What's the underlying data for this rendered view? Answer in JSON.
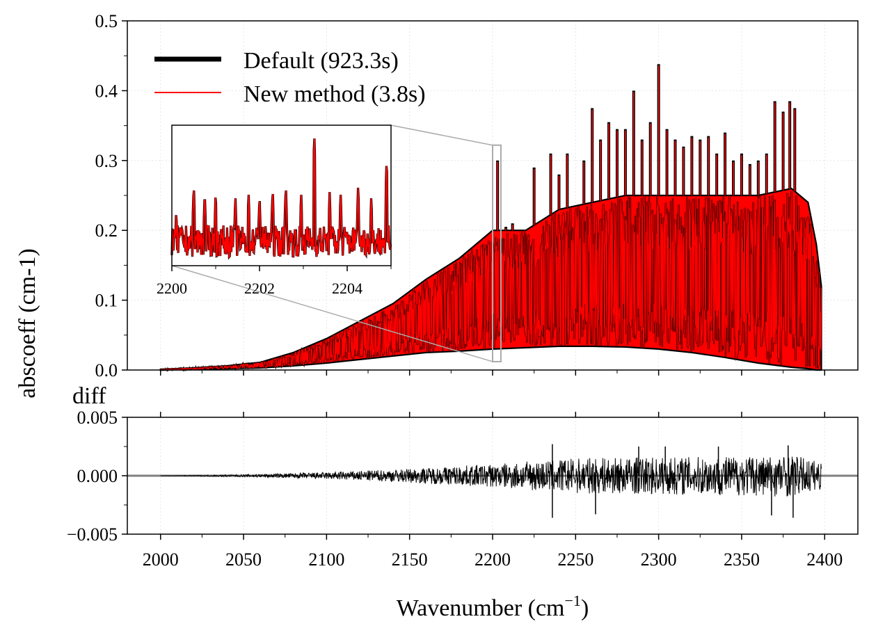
{
  "chart_data": [
    {
      "type": "line",
      "panel": "main",
      "ylabel": "abscoeff (cm-1)",
      "xlim": [
        1980,
        2420
      ],
      "ylim": [
        0.0,
        0.5
      ],
      "xticks": [
        2000,
        2050,
        2100,
        2150,
        2200,
        2250,
        2300,
        2350,
        2400
      ],
      "yticks": [
        0.0,
        0.1,
        0.2,
        0.3,
        0.4,
        0.5
      ],
      "ytick_labels": [
        "0.0",
        "0.1",
        "0.2",
        "0.3",
        "0.4",
        "0.5"
      ],
      "grid": true,
      "legend": "top-left",
      "series": [
        {
          "name": "Default (923.3s)",
          "color": "#000000",
          "style": "thick-line"
        },
        {
          "name": "New method (3.8s)",
          "color": "#ff0000",
          "style": "thin-line"
        }
      ],
      "envelope": {
        "x": [
          2000,
          2020,
          2040,
          2060,
          2080,
          2100,
          2120,
          2140,
          2160,
          2180,
          2200,
          2220,
          2240,
          2260,
          2280,
          2300,
          2320,
          2340,
          2360,
          2380,
          2390,
          2395,
          2398
        ],
        "upper": [
          0.001,
          0.003,
          0.006,
          0.011,
          0.025,
          0.045,
          0.07,
          0.095,
          0.13,
          0.16,
          0.2,
          0.2,
          0.23,
          0.24,
          0.25,
          0.25,
          0.25,
          0.25,
          0.25,
          0.26,
          0.24,
          0.18,
          0.12
        ],
        "lower": [
          0.0,
          0.001,
          0.002,
          0.003,
          0.006,
          0.01,
          0.015,
          0.02,
          0.025,
          0.027,
          0.03,
          0.032,
          0.034,
          0.034,
          0.033,
          0.03,
          0.025,
          0.018,
          0.01,
          0.004,
          0.002,
          0.0,
          0.0
        ]
      },
      "peaks": {
        "x": [
          2203,
          2208,
          2212,
          2225,
          2235,
          2240,
          2245,
          2255,
          2260,
          2265,
          2270,
          2275,
          2280,
          2285,
          2290,
          2295,
          2300,
          2305,
          2310,
          2315,
          2320,
          2325,
          2330,
          2335,
          2340,
          2345,
          2350,
          2355,
          2360,
          2365,
          2370,
          2375,
          2379,
          2382
        ],
        "y": [
          0.3,
          0.205,
          0.21,
          0.29,
          0.31,
          0.28,
          0.31,
          0.3,
          0.375,
          0.33,
          0.355,
          0.345,
          0.345,
          0.4,
          0.33,
          0.355,
          0.438,
          0.345,
          0.33,
          0.32,
          0.335,
          0.33,
          0.335,
          0.31,
          0.34,
          0.3,
          0.31,
          0.295,
          0.3,
          0.31,
          0.385,
          0.37,
          0.385,
          0.375
        ]
      },
      "zoom_box": {
        "x": [
          2200,
          2205
        ],
        "y": [
          0.012,
          0.322
        ]
      }
    },
    {
      "type": "line",
      "panel": "inset",
      "xlim": [
        2200,
        2205
      ],
      "xticks": [
        2200,
        2202,
        2204
      ],
      "series": [
        {
          "name": "Default (923.3s)",
          "color": "#000000"
        },
        {
          "name": "New method (3.8s)",
          "color": "#ff0000"
        }
      ],
      "peaks": {
        "x": [
          2200.1,
          2200.5,
          2200.75,
          2201.0,
          2201.45,
          2201.75,
          2202.0,
          2202.3,
          2202.6,
          2202.95,
          2203.25,
          2203.6,
          2203.85,
          2204.25,
          2204.55,
          2204.9
        ],
        "y": [
          0.23,
          0.265,
          0.255,
          0.255,
          0.25,
          0.255,
          0.25,
          0.26,
          0.265,
          0.255,
          0.335,
          0.255,
          0.255,
          0.265,
          0.25,
          0.3
        ]
      }
    },
    {
      "type": "line",
      "panel": "diff",
      "title": "diff",
      "xlabel": "Wavenumber (cm",
      "xlabel_sup": "−1",
      "xlabel_end": ")",
      "xlim": [
        1980,
        2420
      ],
      "ylim": [
        -0.005,
        0.005
      ],
      "xticks": [
        2000,
        2050,
        2100,
        2150,
        2200,
        2250,
        2300,
        2350,
        2400
      ],
      "yticks": [
        -0.005,
        0.0,
        0.005
      ],
      "ytick_labels": [
        "−0.005",
        "0.000",
        "0.005"
      ],
      "zero_line_color": "#808080",
      "series": [
        {
          "name": "",
          "color": "#000000",
          "x": [
            2000,
            2050,
            2100,
            2150,
            2200,
            2250,
            2300,
            2350,
            2380,
            2398
          ],
          "amplitude": [
            0.0,
            0.0001,
            0.0003,
            0.0006,
            0.001,
            0.0015,
            0.0016,
            0.0017,
            0.0018,
            0.0012
          ]
        }
      ],
      "extremes": {
        "x": [
          2236,
          2236,
          2262,
          2288,
          2304,
          2336,
          2368,
          2378,
          2381
        ],
        "y": [
          0.0027,
          -0.0036,
          -0.0033,
          0.0025,
          0.0025,
          0.0025,
          -0.0034,
          0.0026,
          -0.0036
        ]
      }
    }
  ]
}
